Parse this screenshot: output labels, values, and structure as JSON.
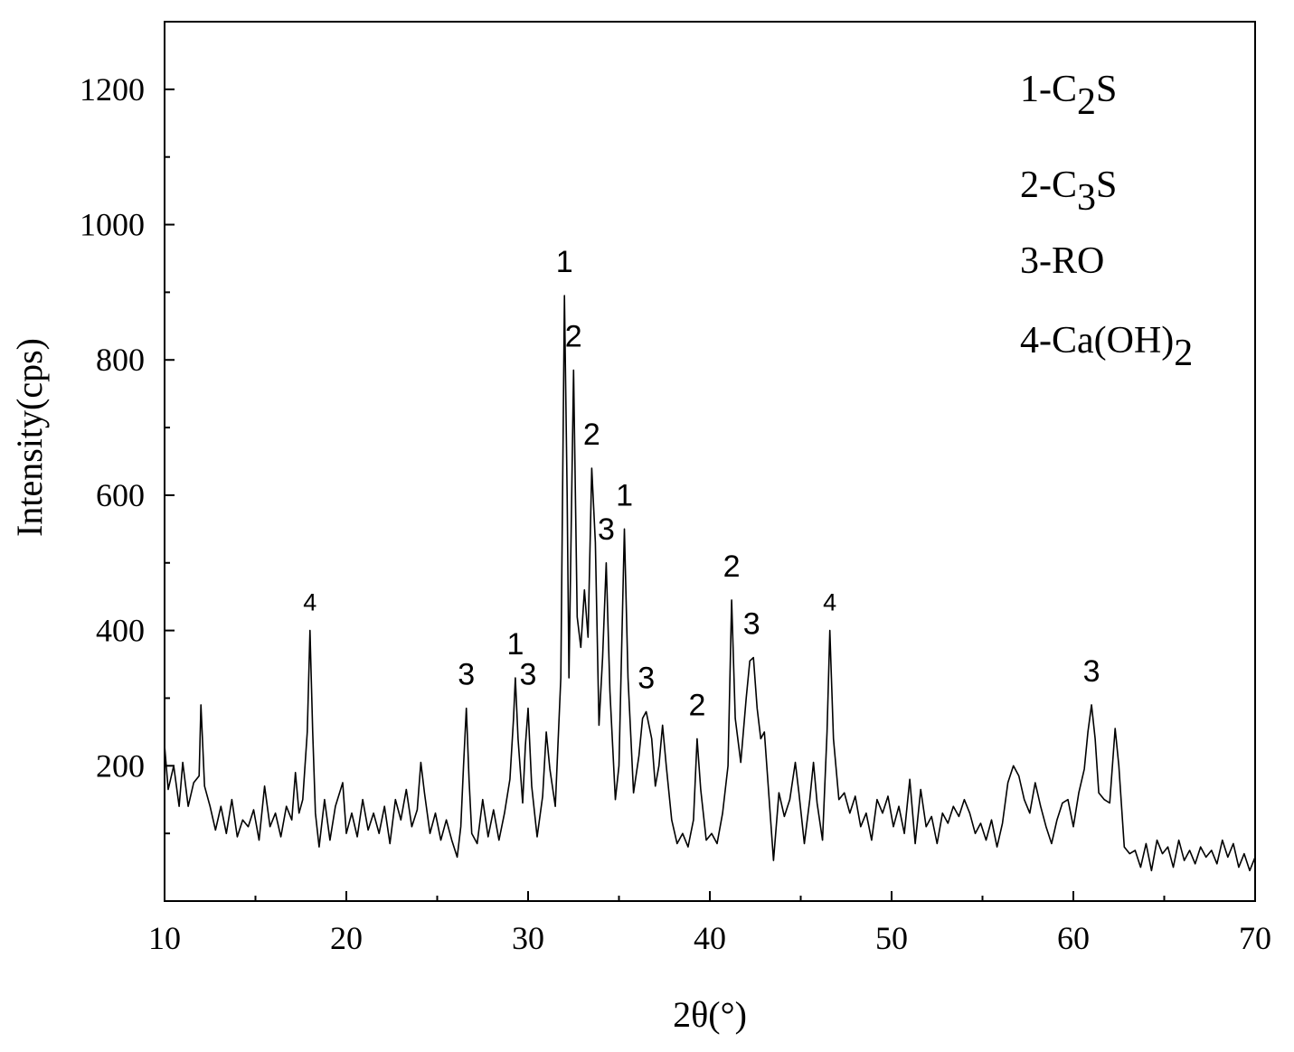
{
  "chart_data": {
    "type": "line",
    "title": "",
    "xlabel": "2θ(°)",
    "ylabel": "Intensity(cps)",
    "xlim": [
      10,
      70
    ],
    "ylim": [
      0,
      1300
    ],
    "grid": false,
    "x_ticks": [
      10,
      20,
      30,
      40,
      50,
      60,
      70
    ],
    "y_ticks": [
      200,
      400,
      600,
      800,
      1000,
      1200
    ],
    "legend": [
      {
        "id": "1",
        "sep": "-",
        "base": "C",
        "sub": "2",
        "tail": "S"
      },
      {
        "id": "2",
        "sep": "-",
        "base": "C",
        "sub": "3",
        "tail": "S"
      },
      {
        "id": "3",
        "sep": "-",
        "base": "RO",
        "sub": "",
        "tail": ""
      },
      {
        "id": "4",
        "sep": "-",
        "base": "Ca(OH)",
        "sub": "2",
        "tail": ""
      }
    ],
    "legend_placement": "top-right",
    "peak_labels": [
      {
        "text": "4",
        "x": 18.0,
        "y": 400,
        "size": "small"
      },
      {
        "text": "3",
        "x": 26.6,
        "y": 285
      },
      {
        "text": "1",
        "x": 29.3,
        "y": 330
      },
      {
        "text": "3",
        "x": 30.0,
        "y": 285
      },
      {
        "text": "1",
        "x": 32.0,
        "y": 895
      },
      {
        "text": "2",
        "x": 32.5,
        "y": 785
      },
      {
        "text": "2",
        "x": 33.5,
        "y": 640
      },
      {
        "text": "3",
        "x": 34.3,
        "y": 500
      },
      {
        "text": "1",
        "x": 35.3,
        "y": 550
      },
      {
        "text": "3",
        "x": 36.5,
        "y": 280
      },
      {
        "text": "2",
        "x": 39.3,
        "y": 240
      },
      {
        "text": "2",
        "x": 41.2,
        "y": 445
      },
      {
        "text": "3",
        "x": 42.3,
        "y": 360
      },
      {
        "text": "4",
        "x": 46.6,
        "y": 400,
        "size": "small"
      },
      {
        "text": "3",
        "x": 61.0,
        "y": 290
      }
    ],
    "series": [
      {
        "values": [
          [
            10.0,
            230
          ],
          [
            10.2,
            165
          ],
          [
            10.5,
            200
          ],
          [
            10.8,
            140
          ],
          [
            11.0,
            205
          ],
          [
            11.3,
            140
          ],
          [
            11.6,
            175
          ],
          [
            11.9,
            185
          ],
          [
            12.0,
            290
          ],
          [
            12.2,
            170
          ],
          [
            12.5,
            140
          ],
          [
            12.8,
            105
          ],
          [
            13.1,
            140
          ],
          [
            13.4,
            100
          ],
          [
            13.7,
            150
          ],
          [
            14.0,
            95
          ],
          [
            14.3,
            120
          ],
          [
            14.6,
            110
          ],
          [
            14.9,
            135
          ],
          [
            15.2,
            90
          ],
          [
            15.5,
            170
          ],
          [
            15.8,
            110
          ],
          [
            16.1,
            130
          ],
          [
            16.4,
            95
          ],
          [
            16.7,
            140
          ],
          [
            17.0,
            120
          ],
          [
            17.2,
            190
          ],
          [
            17.4,
            130
          ],
          [
            17.6,
            150
          ],
          [
            17.85,
            250
          ],
          [
            18.0,
            400
          ],
          [
            18.15,
            250
          ],
          [
            18.3,
            130
          ],
          [
            18.5,
            80
          ],
          [
            18.8,
            150
          ],
          [
            19.1,
            90
          ],
          [
            19.4,
            140
          ],
          [
            19.8,
            175
          ],
          [
            20.0,
            100
          ],
          [
            20.3,
            130
          ],
          [
            20.6,
            95
          ],
          [
            20.9,
            150
          ],
          [
            21.2,
            105
          ],
          [
            21.5,
            130
          ],
          [
            21.8,
            100
          ],
          [
            22.1,
            140
          ],
          [
            22.4,
            85
          ],
          [
            22.7,
            150
          ],
          [
            23.0,
            120
          ],
          [
            23.3,
            165
          ],
          [
            23.6,
            110
          ],
          [
            23.9,
            135
          ],
          [
            24.1,
            205
          ],
          [
            24.3,
            160
          ],
          [
            24.6,
            100
          ],
          [
            24.9,
            130
          ],
          [
            25.2,
            90
          ],
          [
            25.5,
            120
          ],
          [
            25.8,
            90
          ],
          [
            26.1,
            65
          ],
          [
            26.3,
            110
          ],
          [
            26.45,
            200
          ],
          [
            26.6,
            285
          ],
          [
            26.75,
            180
          ],
          [
            26.9,
            100
          ],
          [
            27.2,
            85
          ],
          [
            27.5,
            150
          ],
          [
            27.8,
            95
          ],
          [
            28.1,
            135
          ],
          [
            28.4,
            90
          ],
          [
            28.7,
            130
          ],
          [
            29.0,
            180
          ],
          [
            29.2,
            270
          ],
          [
            29.3,
            330
          ],
          [
            29.45,
            240
          ],
          [
            29.7,
            145
          ],
          [
            29.85,
            230
          ],
          [
            30.0,
            285
          ],
          [
            30.2,
            170
          ],
          [
            30.5,
            95
          ],
          [
            30.8,
            155
          ],
          [
            31.0,
            250
          ],
          [
            31.2,
            195
          ],
          [
            31.5,
            140
          ],
          [
            31.8,
            330
          ],
          [
            32.0,
            895
          ],
          [
            32.15,
            600
          ],
          [
            32.25,
            330
          ],
          [
            32.5,
            785
          ],
          [
            32.7,
            420
          ],
          [
            32.9,
            375
          ],
          [
            33.1,
            460
          ],
          [
            33.3,
            390
          ],
          [
            33.5,
            640
          ],
          [
            33.7,
            530
          ],
          [
            33.9,
            260
          ],
          [
            34.1,
            360
          ],
          [
            34.3,
            500
          ],
          [
            34.5,
            310
          ],
          [
            34.8,
            150
          ],
          [
            35.0,
            200
          ],
          [
            35.3,
            550
          ],
          [
            35.5,
            330
          ],
          [
            35.8,
            160
          ],
          [
            36.1,
            215
          ],
          [
            36.3,
            270
          ],
          [
            36.5,
            280
          ],
          [
            36.8,
            240
          ],
          [
            37.0,
            170
          ],
          [
            37.2,
            200
          ],
          [
            37.4,
            260
          ],
          [
            37.6,
            200
          ],
          [
            37.9,
            120
          ],
          [
            38.2,
            85
          ],
          [
            38.5,
            100
          ],
          [
            38.8,
            80
          ],
          [
            39.1,
            120
          ],
          [
            39.3,
            240
          ],
          [
            39.5,
            165
          ],
          [
            39.8,
            90
          ],
          [
            40.1,
            100
          ],
          [
            40.4,
            85
          ],
          [
            40.7,
            130
          ],
          [
            41.0,
            200
          ],
          [
            41.2,
            445
          ],
          [
            41.4,
            270
          ],
          [
            41.7,
            205
          ],
          [
            42.0,
            300
          ],
          [
            42.2,
            355
          ],
          [
            42.4,
            360
          ],
          [
            42.6,
            285
          ],
          [
            42.8,
            240
          ],
          [
            43.0,
            250
          ],
          [
            43.2,
            175
          ],
          [
            43.5,
            60
          ],
          [
            43.8,
            160
          ],
          [
            44.1,
            125
          ],
          [
            44.4,
            150
          ],
          [
            44.7,
            205
          ],
          [
            44.9,
            160
          ],
          [
            45.2,
            85
          ],
          [
            45.5,
            150
          ],
          [
            45.7,
            205
          ],
          [
            45.9,
            145
          ],
          [
            46.2,
            90
          ],
          [
            46.45,
            250
          ],
          [
            46.6,
            400
          ],
          [
            46.8,
            240
          ],
          [
            47.1,
            150
          ],
          [
            47.4,
            160
          ],
          [
            47.7,
            130
          ],
          [
            48.0,
            155
          ],
          [
            48.3,
            110
          ],
          [
            48.6,
            130
          ],
          [
            48.9,
            90
          ],
          [
            49.2,
            150
          ],
          [
            49.5,
            130
          ],
          [
            49.8,
            155
          ],
          [
            50.1,
            110
          ],
          [
            50.4,
            140
          ],
          [
            50.7,
            100
          ],
          [
            51.0,
            180
          ],
          [
            51.3,
            85
          ],
          [
            51.6,
            165
          ],
          [
            51.9,
            110
          ],
          [
            52.2,
            125
          ],
          [
            52.5,
            85
          ],
          [
            52.8,
            130
          ],
          [
            53.1,
            115
          ],
          [
            53.4,
            140
          ],
          [
            53.7,
            125
          ],
          [
            54.0,
            150
          ],
          [
            54.3,
            130
          ],
          [
            54.6,
            100
          ],
          [
            54.9,
            115
          ],
          [
            55.2,
            90
          ],
          [
            55.5,
            120
          ],
          [
            55.8,
            80
          ],
          [
            56.1,
            115
          ],
          [
            56.4,
            175
          ],
          [
            56.7,
            200
          ],
          [
            57.0,
            185
          ],
          [
            57.3,
            150
          ],
          [
            57.6,
            130
          ],
          [
            57.9,
            175
          ],
          [
            58.2,
            140
          ],
          [
            58.5,
            110
          ],
          [
            58.8,
            85
          ],
          [
            59.1,
            120
          ],
          [
            59.4,
            145
          ],
          [
            59.7,
            150
          ],
          [
            60.0,
            110
          ],
          [
            60.3,
            160
          ],
          [
            60.6,
            195
          ],
          [
            60.8,
            250
          ],
          [
            61.0,
            290
          ],
          [
            61.2,
            240
          ],
          [
            61.4,
            160
          ],
          [
            61.7,
            150
          ],
          [
            62.0,
            145
          ],
          [
            62.3,
            255
          ],
          [
            62.5,
            200
          ],
          [
            62.8,
            80
          ],
          [
            63.1,
            70
          ],
          [
            63.4,
            75
          ],
          [
            63.7,
            50
          ],
          [
            64.0,
            85
          ],
          [
            64.3,
            45
          ],
          [
            64.6,
            90
          ],
          [
            64.9,
            70
          ],
          [
            65.2,
            80
          ],
          [
            65.5,
            50
          ],
          [
            65.8,
            90
          ],
          [
            66.1,
            60
          ],
          [
            66.4,
            75
          ],
          [
            66.7,
            55
          ],
          [
            67.0,
            80
          ],
          [
            67.3,
            65
          ],
          [
            67.6,
            75
          ],
          [
            67.9,
            55
          ],
          [
            68.2,
            90
          ],
          [
            68.5,
            65
          ],
          [
            68.8,
            85
          ],
          [
            69.1,
            50
          ],
          [
            69.4,
            70
          ],
          [
            69.7,
            45
          ],
          [
            70.0,
            65
          ]
        ]
      }
    ]
  }
}
